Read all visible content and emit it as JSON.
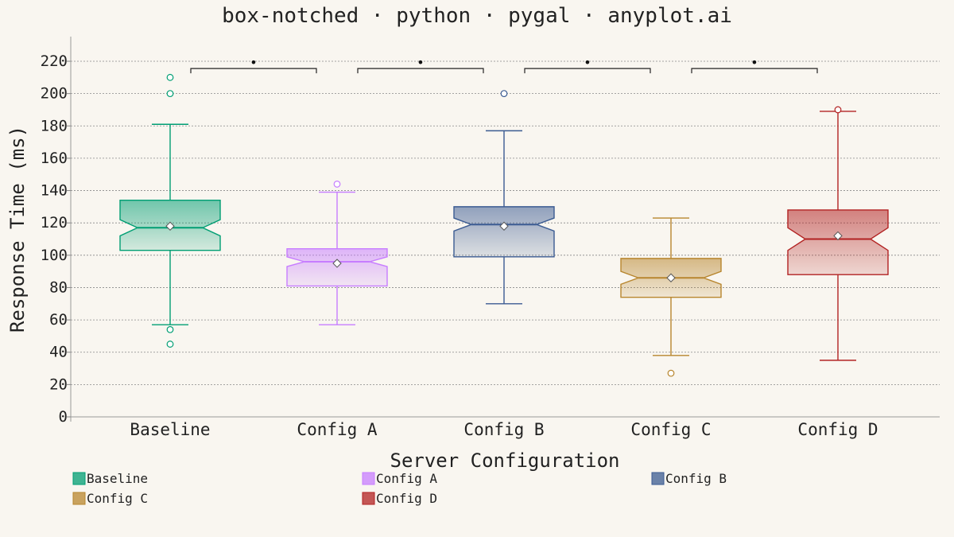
{
  "chart_data": {
    "type": "box",
    "title": "box-notched · python · pygal · anyplot.ai",
    "xlabel": "Server Configuration",
    "ylabel": "Response Time (ms)",
    "ylim": [
      0,
      230
    ],
    "yticks": [
      0,
      20,
      40,
      60,
      80,
      100,
      120,
      140,
      160,
      180,
      200,
      220
    ],
    "grid": "horizontal dotted",
    "legend_position": "bottom",
    "notched": true,
    "categories": [
      "Baseline",
      "Config A",
      "Config B",
      "Config C",
      "Config D"
    ],
    "series": [
      {
        "name": "Baseline",
        "color": "#009E73",
        "whisker_low": 57,
        "q1": 103,
        "median": 117,
        "q3": 134,
        "whisker_high": 181,
        "mean": 118,
        "notch_low": 112,
        "notch_high": 122,
        "outliers": [
          45,
          54,
          200,
          210
        ]
      },
      {
        "name": "Config A",
        "color": "#C77DFF",
        "whisker_low": 57,
        "q1": 81,
        "median": 96,
        "q3": 104,
        "whisker_high": 139,
        "mean": 95,
        "notch_low": 93,
        "notch_high": 99,
        "outliers": [
          144
        ]
      },
      {
        "name": "Config B",
        "color": "#3B5B92",
        "whisker_low": 70,
        "q1": 99,
        "median": 119,
        "q3": 130,
        "whisker_high": 177,
        "mean": 118,
        "notch_low": 115,
        "notch_high": 123,
        "outliers": [
          200
        ]
      },
      {
        "name": "Config C",
        "color": "#B8862E",
        "whisker_low": 38,
        "q1": 74,
        "median": 86,
        "q3": 98,
        "whisker_high": 123,
        "mean": 86,
        "notch_low": 82,
        "notch_high": 90,
        "outliers": [
          27
        ]
      },
      {
        "name": "Config D",
        "color": "#B22222",
        "whisker_low": 35,
        "q1": 88,
        "median": 110,
        "q3": 128,
        "whisker_high": 189,
        "mean": 112,
        "notch_low": 103,
        "notch_high": 117,
        "outliers": [
          190
        ]
      }
    ],
    "significance_brackets": [
      {
        "from": "Baseline",
        "to": "Config A",
        "y": 215,
        "marker": "•"
      },
      {
        "from": "Config A",
        "to": "Config B",
        "y": 215,
        "marker": "•"
      },
      {
        "from": "Config B",
        "to": "Config C",
        "y": 215,
        "marker": "•"
      },
      {
        "from": "Config C",
        "to": "Config D",
        "y": 215,
        "marker": "•"
      }
    ]
  }
}
